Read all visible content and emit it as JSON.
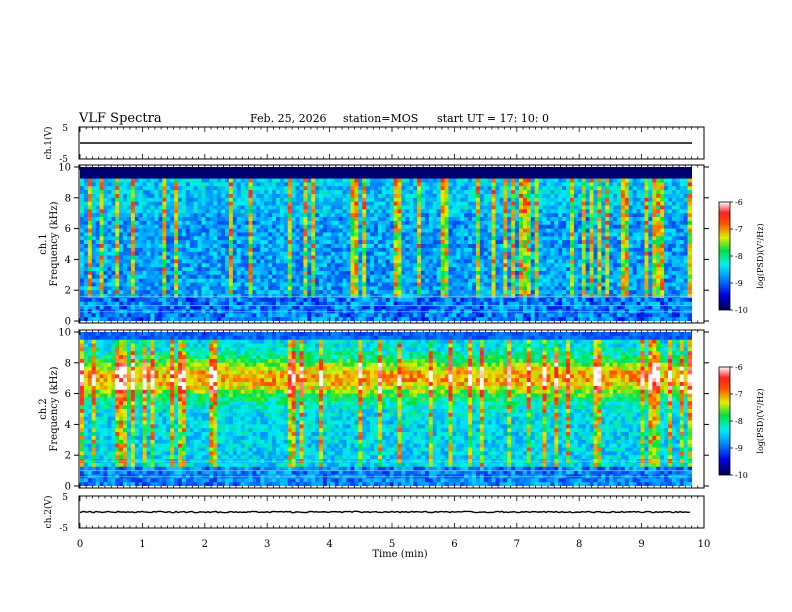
{
  "header": {
    "title": "VLF Spectra",
    "date": "Feb. 25, 2026",
    "station": "station=MOS",
    "start": "start  UT =   17: 10: 0"
  },
  "chart_data": {
    "type": "heatmap",
    "xlabel": "Time  (min)",
    "xlim": [
      0,
      10
    ],
    "x_ticks": [
      "0",
      "1",
      "2",
      "3",
      "4",
      "5",
      "6",
      "7",
      "8",
      "9",
      "10"
    ],
    "panels": [
      {
        "id": "ch1_wave",
        "type": "line",
        "ylabel": "ch.1(V)",
        "ylim": [
          -5,
          5
        ],
        "y_ticks": [
          "5",
          "-5"
        ],
        "trace_level": 0
      },
      {
        "id": "ch1_spec",
        "type": "heatmap",
        "ylabel_top": "ch.1",
        "ylabel": "Frequency  (kHz)",
        "ylim": [
          0,
          10
        ],
        "y_ticks": [
          "0",
          "2",
          "4",
          "6",
          "8",
          "10"
        ],
        "data_xmax": 9.8,
        "colorbar": {
          "label": "log(PSD)(V²/Hz)",
          "range": [
            -10,
            -6
          ],
          "ticks": [
            "-6",
            "-7",
            "-8",
            "-9",
            "-10"
          ]
        }
      },
      {
        "id": "ch2_spec",
        "type": "heatmap",
        "ylabel_top": "ch.2",
        "ylabel": "Frequency  (kHz)",
        "ylim": [
          0,
          10
        ],
        "y_ticks": [
          "0",
          "2",
          "4",
          "6",
          "8",
          "10"
        ],
        "data_xmax": 9.8,
        "colorbar": {
          "label": "log(PSD)(V²/Hz)",
          "range": [
            -10,
            -6
          ],
          "ticks": [
            "-6",
            "-7",
            "-8",
            "-9",
            "-10"
          ]
        }
      },
      {
        "id": "ch2_wave",
        "type": "line",
        "ylabel": "ch.2(V)",
        "ylim": [
          -5,
          5
        ],
        "y_ticks": [
          "5",
          "-5"
        ],
        "trace_level": 0
      }
    ]
  }
}
